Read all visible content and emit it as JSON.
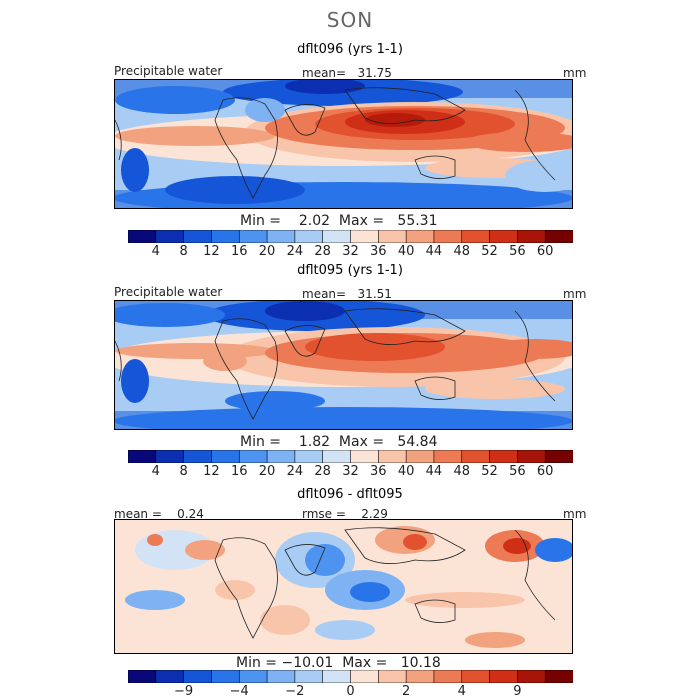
{
  "figure": {
    "season": "SON"
  },
  "panels": [
    {
      "title": "dflt096 (yrs 1-1)",
      "variable": "Precipitable water",
      "mean_label": "mean=",
      "mean_value": "31.75",
      "units": "mm",
      "min_label": "Min =",
      "min_value": "2.02",
      "max_label": "Max =",
      "max_value": "55.31"
    },
    {
      "title": "dflt095 (yrs 1-1)",
      "variable": "Precipitable water",
      "mean_label": "mean=",
      "mean_value": "31.51",
      "units": "mm",
      "min_label": "Min =",
      "min_value": "1.82",
      "max_label": "Max =",
      "max_value": "54.84"
    },
    {
      "title": "dflt096 - dflt095",
      "mean_label": "mean =",
      "mean_value": "0.24",
      "rmse_label": "rmse =",
      "rmse_value": "2.29",
      "units": "mm",
      "min_label": "Min =",
      "min_value": "−10.01",
      "max_label": "Max =",
      "max_value": "10.18"
    }
  ],
  "colorbars": {
    "absolute": {
      "colors": [
        "#08087a",
        "#0b2fb0",
        "#1555d8",
        "#2a74ea",
        "#4f93f0",
        "#7fb2f2",
        "#a9ccf5",
        "#d3e3f6",
        "#fbe4d6",
        "#f8c5ab",
        "#f3a27f",
        "#ec7a55",
        "#e2522f",
        "#cf2f16",
        "#a81408",
        "#740000"
      ],
      "labels": [
        "4",
        "8",
        "12",
        "16",
        "20",
        "24",
        "28",
        "32",
        "36",
        "40",
        "44",
        "48",
        "52",
        "56",
        "60"
      ]
    },
    "difference": {
      "colors": [
        "#08087a",
        "#0b2fb0",
        "#1555d8",
        "#2a74ea",
        "#4f93f0",
        "#7fb2f2",
        "#a9ccf5",
        "#d3e3f6",
        "#fbe4d6",
        "#f8c5ab",
        "#f3a27f",
        "#ec7a55",
        "#e2522f",
        "#cf2f16",
        "#a81408",
        "#740000"
      ],
      "labels": [
        "−9",
        "−4",
        "−2",
        "0",
        "2",
        "4",
        "9"
      ],
      "label_boundaries": [
        2,
        4,
        6,
        8,
        10,
        12,
        14
      ]
    }
  }
}
